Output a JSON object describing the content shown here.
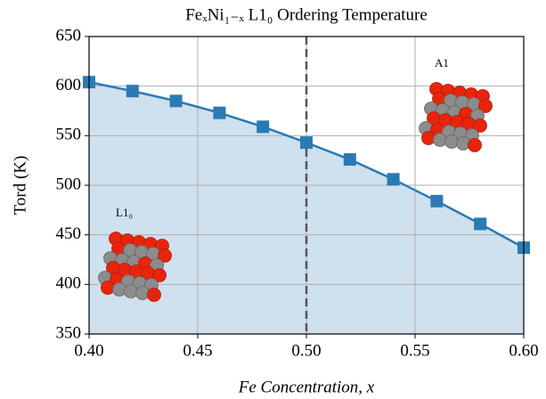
{
  "chart_data": {
    "type": "line",
    "title": "FeₓNi₁₋ₓ L1₀ Ordering Temperature",
    "xlabel": "Fe Concentration, x",
    "ylabel": "Tord (K)",
    "x": [
      0.4,
      0.42,
      0.44,
      0.46,
      0.48,
      0.5,
      0.52,
      0.54,
      0.56,
      0.58,
      0.6
    ],
    "series": [
      {
        "color": "#2a7ab4",
        "fill": "#cfe0ee",
        "values": [
          604,
          595,
          585,
          573,
          559,
          543,
          526,
          506,
          484,
          461,
          437
        ]
      }
    ],
    "xlim": [
      0.4,
      0.6
    ],
    "xticks": [
      {
        "value": 0.4,
        "label": "0.40"
      },
      {
        "value": 0.45,
        "label": "0.45"
      },
      {
        "value": 0.5,
        "label": "0.50"
      },
      {
        "value": 0.55,
        "label": "0.55"
      },
      {
        "value": 0.6,
        "label": "0.60"
      }
    ],
    "ylim": [
      350,
      650
    ],
    "yticks": [
      350,
      400,
      450,
      500,
      550,
      600,
      650
    ],
    "vline": 0.5,
    "grid": true,
    "annotations": [
      "A1",
      "L1₀"
    ]
  }
}
